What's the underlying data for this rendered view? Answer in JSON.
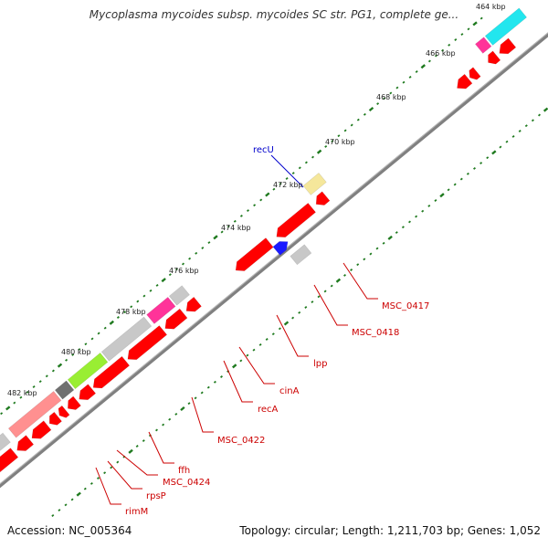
{
  "header": {
    "title": "Mycoplasma mycoides subsp. mycoides SC str. PG1, complete ge..."
  },
  "footer": {
    "accession": "Accession: NC_005364",
    "summary": "Topology: circular; Length: 1,211,703 bp; Genes: 1,052"
  },
  "colors": {
    "backbone": "#808080",
    "tick": "#1f7a1f",
    "gene_default": "#ff0000",
    "gene_gray": "#c8c8c8",
    "gene_pink": "#ff3399",
    "gene_lightred": "#ff9090",
    "gene_lime": "#99ee33",
    "gene_cyan": "#22e6ee",
    "gene_tan": "#f5e79b",
    "gene_blue": "#1a1aff",
    "gene_darkgray": "#707070",
    "label_forward": "#0000cc",
    "label_reverse": "#cc0000"
  },
  "axis": {
    "ticks": [
      {
        "label": "464 kbp"
      },
      {
        "label": "466 kbp"
      },
      {
        "label": "468 kbp"
      },
      {
        "label": "470 kbp"
      },
      {
        "label": "472 kbp"
      },
      {
        "label": "474 kbp"
      },
      {
        "label": "476 kbp"
      },
      {
        "label": "478 kbp"
      },
      {
        "label": "480 kbp"
      },
      {
        "label": "482 kbp"
      }
    ]
  },
  "genes": {
    "labels": [
      {
        "name": "recU",
        "strand": "forward"
      },
      {
        "name": "MSC_0417",
        "strand": "reverse"
      },
      {
        "name": "MSC_0418",
        "strand": "reverse"
      },
      {
        "name": "lpp",
        "strand": "reverse"
      },
      {
        "name": "cinA",
        "strand": "reverse"
      },
      {
        "name": "recA",
        "strand": "reverse"
      },
      {
        "name": "MSC_0422",
        "strand": "reverse"
      },
      {
        "name": "ffh",
        "strand": "reverse"
      },
      {
        "name": "MSC_0424",
        "strand": "reverse"
      },
      {
        "name": "rpsP",
        "strand": "reverse"
      },
      {
        "name": "rimM",
        "strand": "reverse"
      }
    ]
  }
}
